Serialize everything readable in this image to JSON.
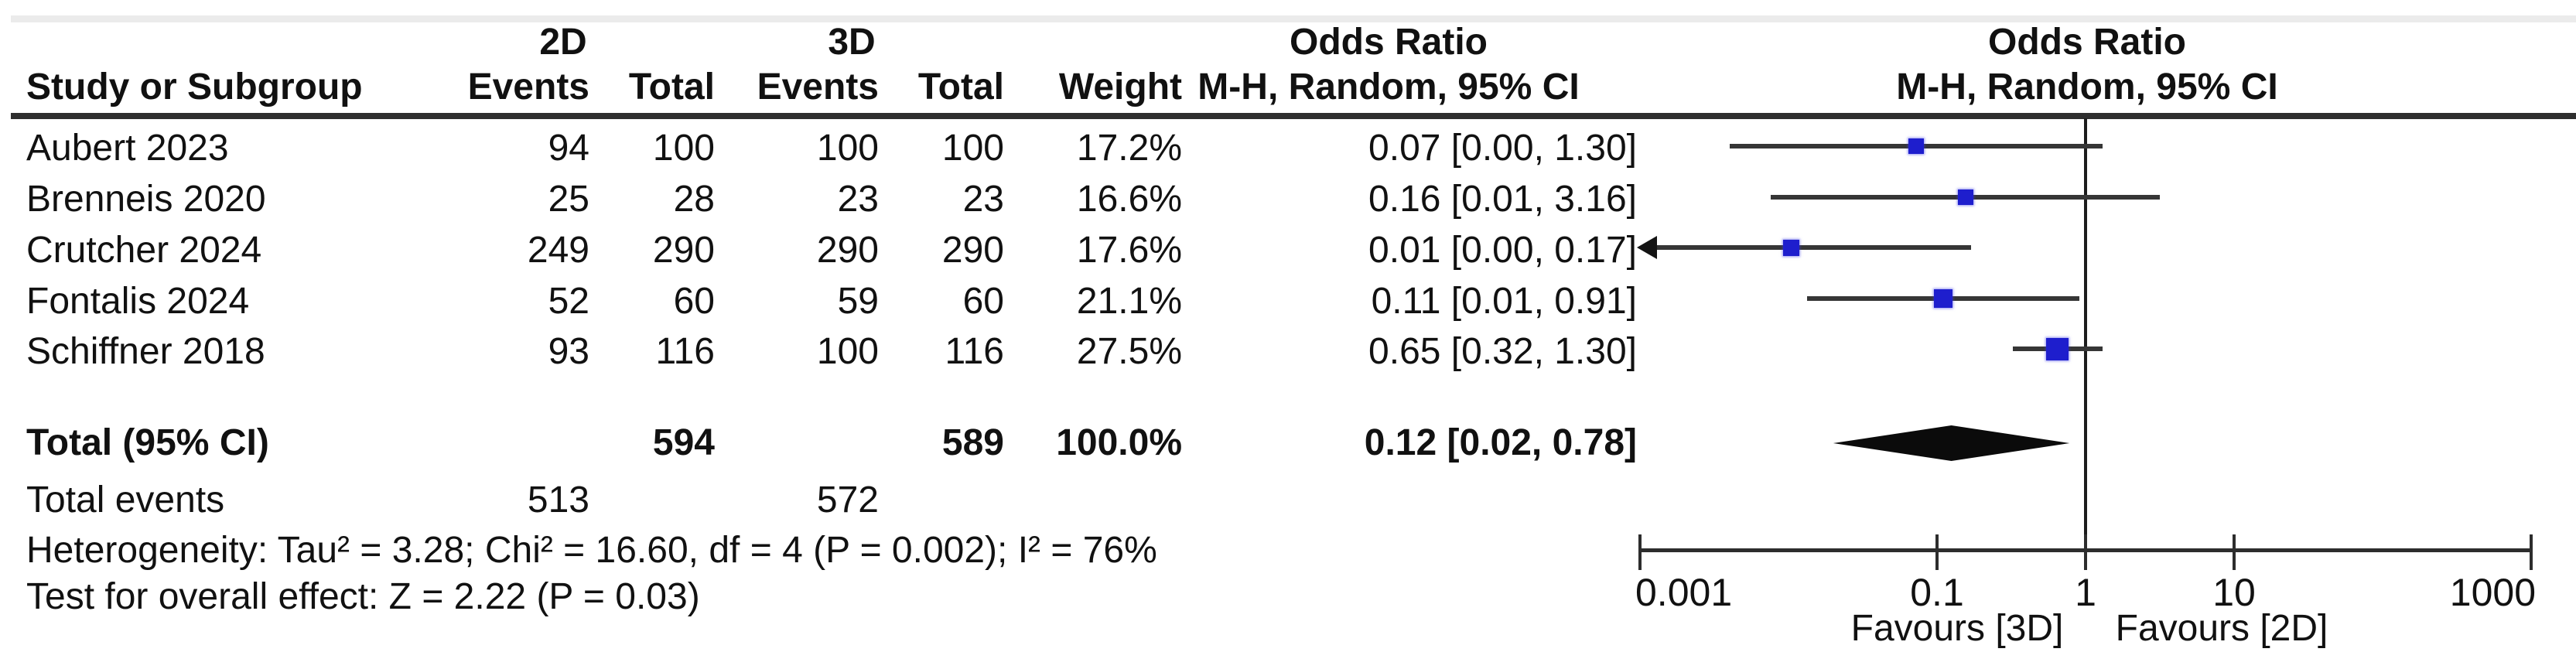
{
  "header": {
    "group_2d": "2D",
    "group_3d": "3D",
    "or_col_title": "Odds Ratio",
    "plot_col_title": "Odds Ratio",
    "study_col": "Study or Subgroup",
    "events_2d_col": "Events",
    "total_2d_col": "Total",
    "events_3d_col": "Events",
    "total_3d_col": "Total",
    "weight_col": "Weight",
    "or_method_col": "M-H, Random, 95% CI",
    "plot_method_col": "M-H, Random, 95% CI"
  },
  "chart_data": {
    "type": "forest",
    "effect_measure": "Odds Ratio, M-H, Random, 95% CI",
    "x_axis": {
      "scale": "log",
      "ticks": [
        0.001,
        0.1,
        1,
        10,
        1000
      ],
      "tick_labels": [
        "0.001",
        "0.1",
        "1",
        "10",
        "1000"
      ],
      "favours_left": "Favours [3D]",
      "favours_right": "Favours [2D]"
    },
    "studies": [
      {
        "name": "Aubert 2023",
        "events_2d": "94",
        "total_2d": "100",
        "events_3d": "100",
        "total_3d": "100",
        "weight": "17.2%",
        "weight_value": 17.2,
        "or_text": "0.07 [0.00, 1.30]",
        "or_value": 0.072,
        "plot_lo": 0.004,
        "plot_hi": 1.3,
        "arrow_left": false
      },
      {
        "name": "Brenneis 2020",
        "events_2d": "25",
        "total_2d": "28",
        "events_3d": "23",
        "total_3d": "23",
        "weight": "16.6%",
        "weight_value": 16.6,
        "or_text": "0.16 [0.01, 3.16]",
        "or_value": 0.155,
        "plot_lo": 0.0076,
        "plot_hi": 3.16,
        "arrow_left": false
      },
      {
        "name": "Crutcher 2024",
        "events_2d": "249",
        "total_2d": "290",
        "events_3d": "290",
        "total_3d": "290",
        "weight": "17.6%",
        "weight_value": 17.6,
        "or_text": "0.01 [0.00, 0.17]",
        "or_value": 0.0104,
        "plot_lo": 0.001,
        "plot_hi": 0.169,
        "arrow_left": true
      },
      {
        "name": "Fontalis 2024",
        "events_2d": "52",
        "total_2d": "60",
        "events_3d": "59",
        "total_3d": "60",
        "weight": "21.1%",
        "weight_value": 21.1,
        "or_text": "0.11 [0.01, 0.91]",
        "or_value": 0.11,
        "plot_lo": 0.0133,
        "plot_hi": 0.911,
        "arrow_left": false
      },
      {
        "name": "Schiffner 2018",
        "events_2d": "93",
        "total_2d": "116",
        "events_3d": "100",
        "total_3d": "116",
        "weight": "27.5%",
        "weight_value": 27.5,
        "or_text": "0.65 [0.32, 1.30]",
        "or_value": 0.647,
        "plot_lo": 0.322,
        "plot_hi": 1.3,
        "arrow_left": false
      }
    ],
    "total": {
      "label": "Total (95% CI)",
      "total_2d": "594",
      "total_3d": "589",
      "weight": "100.0%",
      "or_text": "0.12 [0.02, 0.78]",
      "or_value": 0.12,
      "lo_value": 0.02,
      "hi_value": 0.78
    },
    "total_events": {
      "label": "Total events",
      "events_2d": "513",
      "events_3d": "572"
    }
  },
  "footer": {
    "heterogeneity": "Heterogeneity: Tau² = 3.28; Chi² = 16.60, df = 4 (P = 0.002); I² = 76%",
    "overall_effect": "Test for overall effect: Z = 2.22 (P = 0.03)"
  }
}
